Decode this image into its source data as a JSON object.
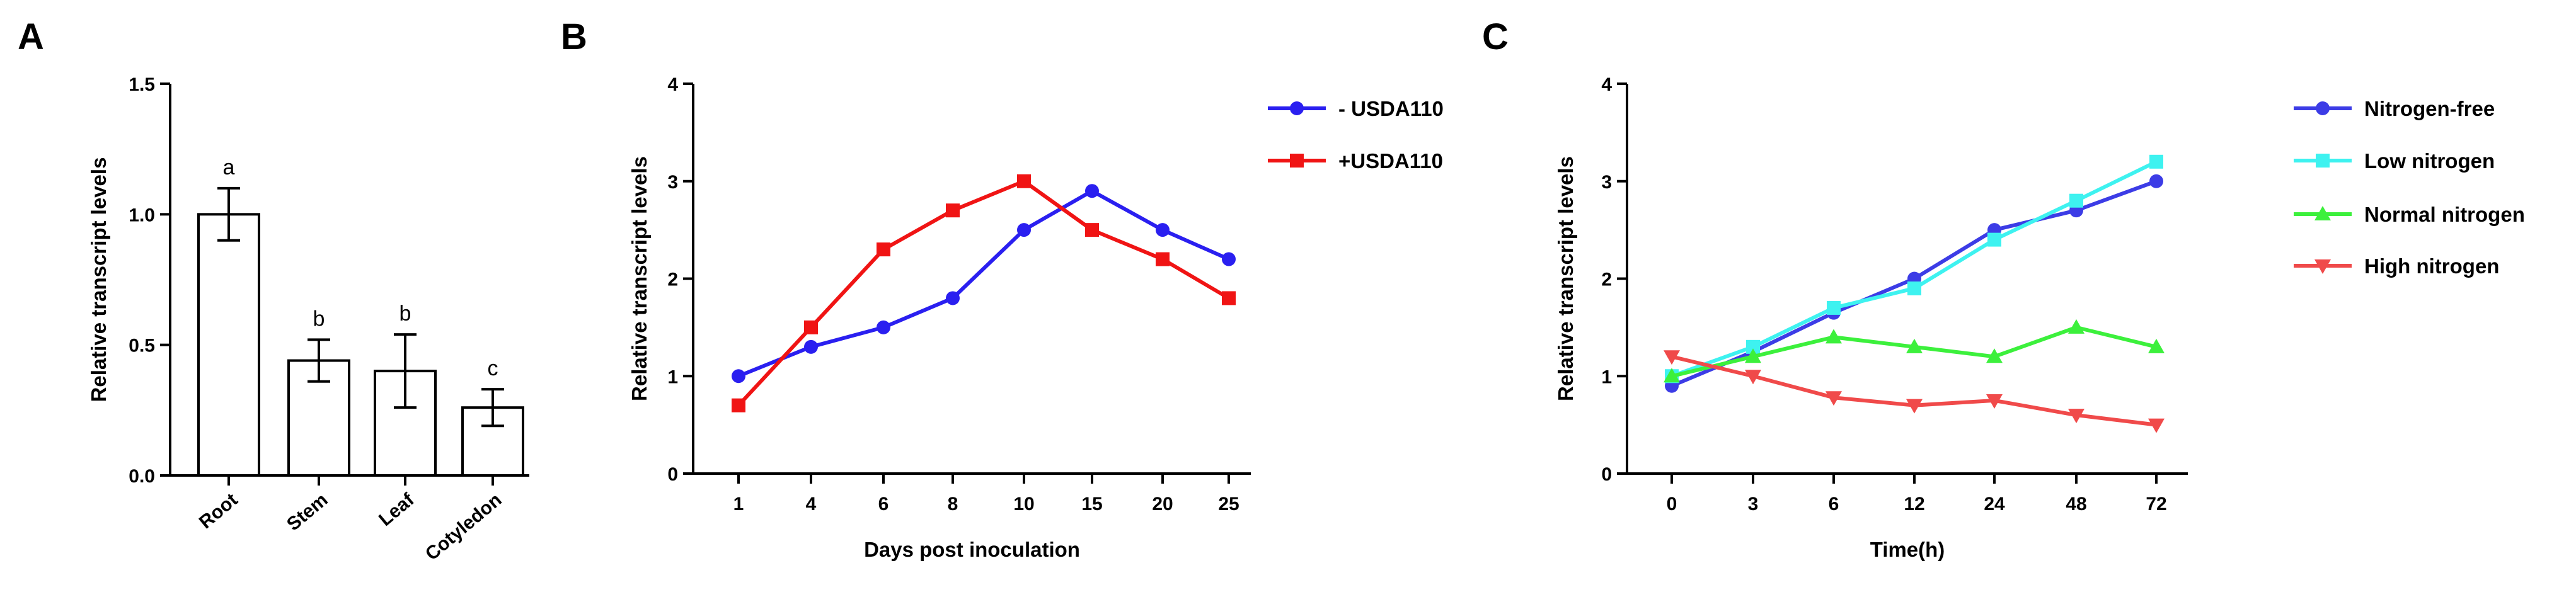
{
  "panels": {
    "a": "A",
    "b": "B",
    "c": "C"
  },
  "colors": {
    "axis": "#000000",
    "blue": "#2a1ff0",
    "red": "#f01414",
    "navy": "#3c3ce6",
    "cyan": "#3ef2f0",
    "green": "#3cf03c",
    "salmon": "#f04a4a"
  },
  "chart_data": [
    {
      "type": "bar",
      "panel": "A",
      "title": "",
      "xlabel": "",
      "ylabel": "Relative transcript levels",
      "categories": [
        "Root",
        "Stem",
        "Leaf",
        "Cotyledon"
      ],
      "values": [
        1.0,
        0.44,
        0.4,
        0.26
      ],
      "errors": [
        0.1,
        0.08,
        0.14,
        0.07
      ],
      "significance": [
        "a",
        "b",
        "b",
        "c"
      ],
      "ylim": [
        0,
        1.5
      ],
      "yticks": [
        "0.0",
        "0.5",
        "1.0",
        "1.5"
      ],
      "bar_fill": "#ffffff",
      "bar_stroke": "#000000"
    },
    {
      "type": "line",
      "panel": "B",
      "title": "",
      "xlabel": "Days post inoculation",
      "ylabel": "Relative transcript levels",
      "categories": [
        "1",
        "4",
        "6",
        "8",
        "10",
        "15",
        "20",
        "25"
      ],
      "ylim": [
        0,
        4
      ],
      "yticks": [
        "0",
        "1",
        "2",
        "3",
        "4"
      ],
      "legend_position": "top-right",
      "series": [
        {
          "name": "- USDA110",
          "marker": "circle",
          "color": "#2a1ff0",
          "values": [
            1.0,
            1.3,
            1.5,
            1.8,
            2.5,
            2.9,
            2.5,
            2.2
          ]
        },
        {
          "name": "+USDA110",
          "marker": "square",
          "color": "#f01414",
          "values": [
            0.7,
            1.5,
            2.3,
            2.7,
            3.0,
            2.5,
            2.2,
            1.8
          ]
        }
      ]
    },
    {
      "type": "line",
      "panel": "C",
      "title": "",
      "xlabel": "Time(h)",
      "ylabel": "Relative transcript levels",
      "categories": [
        "0",
        "3",
        "6",
        "12",
        "24",
        "48",
        "72"
      ],
      "ylim": [
        0,
        4
      ],
      "yticks": [
        "0",
        "1",
        "2",
        "3",
        "4"
      ],
      "legend_position": "right",
      "series": [
        {
          "name": "Nitrogen-free",
          "marker": "circle",
          "color": "#3c3ce6",
          "values": [
            0.9,
            1.25,
            1.65,
            2.0,
            2.5,
            2.7,
            3.0
          ]
        },
        {
          "name": "Low nitrogen",
          "marker": "square",
          "color": "#3ef2f0",
          "values": [
            1.0,
            1.3,
            1.7,
            1.9,
            2.4,
            2.8,
            3.2
          ]
        },
        {
          "name": "Normal nitrogen",
          "marker": "triangle-up",
          "color": "#3cf03c",
          "values": [
            1.0,
            1.2,
            1.4,
            1.3,
            1.2,
            1.5,
            1.3
          ]
        },
        {
          "name": "High nitrogen",
          "marker": "triangle-down",
          "color": "#f04a4a",
          "values": [
            1.2,
            1.0,
            0.78,
            0.7,
            0.75,
            0.6,
            0.5
          ]
        }
      ]
    }
  ]
}
